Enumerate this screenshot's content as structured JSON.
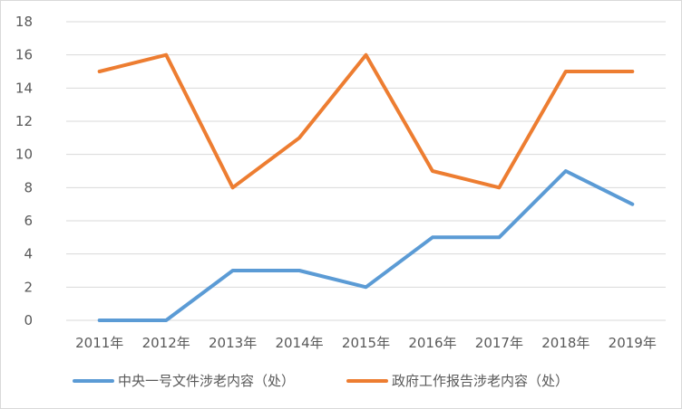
{
  "chart_data": {
    "type": "line",
    "title": "",
    "xlabel": "",
    "ylabel": "",
    "categories": [
      "2011年",
      "2012年",
      "2013年",
      "2014年",
      "2015年",
      "2016年",
      "2017年",
      "2018年",
      "2019年"
    ],
    "y_ticks": [
      "0",
      "2",
      "4",
      "6",
      "8",
      "10",
      "12",
      "14",
      "16",
      "18"
    ],
    "ylim": [
      0,
      18
    ],
    "grid": true,
    "legend_position": "bottom",
    "series": [
      {
        "name": "中央一号文件涉老内容（处）",
        "color": "#5b9bd5",
        "values": [
          0,
          0,
          3,
          3,
          2,
          5,
          5,
          9,
          7
        ]
      },
      {
        "name": "政府工作报告涉老内容（处）",
        "color": "#ed7d31",
        "values": [
          15,
          16,
          8,
          11,
          16,
          9,
          8,
          15,
          15
        ]
      }
    ]
  }
}
